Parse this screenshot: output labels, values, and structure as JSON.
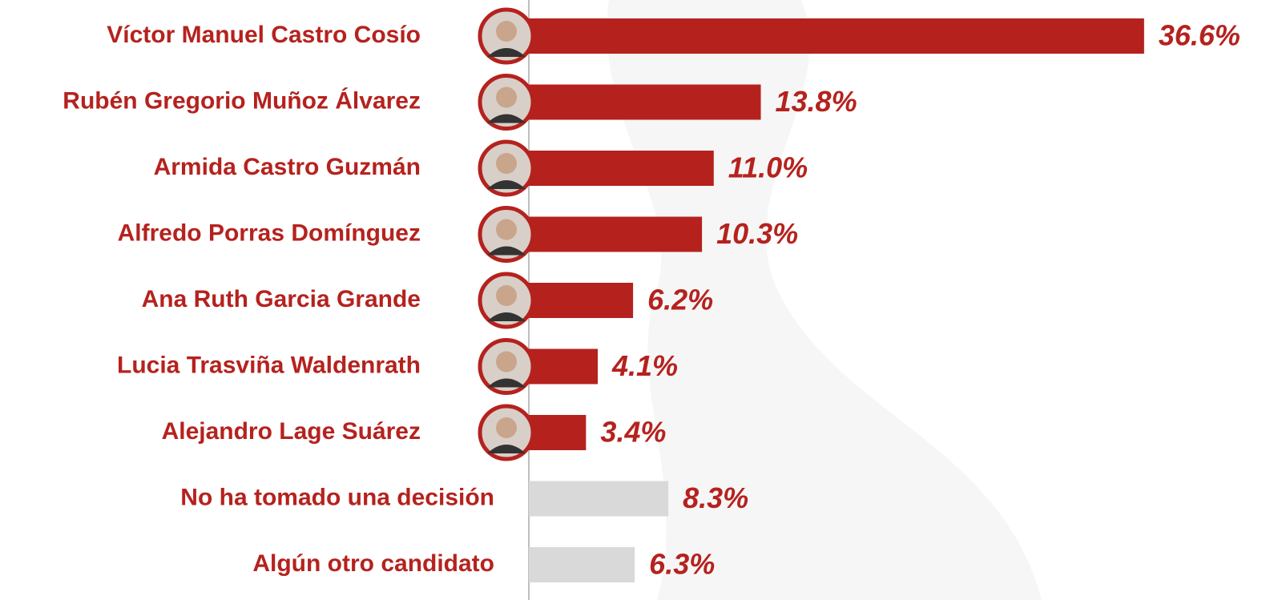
{
  "chart_data": {
    "type": "bar",
    "orientation": "horizontal",
    "categories": [
      "Víctor Manuel Castro Cosío",
      "Rubén Gregorio Muñoz Álvarez",
      "Armida Castro Guzmán",
      "Alfredo Porras Domínguez",
      "Ana Ruth Garcia Grande",
      "Lucia Trasviña Waldenrath",
      "Alejandro Lage Suárez",
      "No ha tomado una decisión",
      "Algún otro candidato"
    ],
    "values": [
      36.6,
      13.8,
      11.0,
      10.3,
      6.2,
      4.1,
      3.4,
      8.3,
      6.3
    ],
    "value_labels": [
      "36.6%",
      "13.8%",
      "11.0%",
      "10.3%",
      "6.2%",
      "4.1%",
      "3.4%",
      "8.3%",
      "6.3%"
    ],
    "colors": [
      "#b5221e",
      "#b5221e",
      "#b5221e",
      "#b5221e",
      "#b5221e",
      "#b5221e",
      "#b5221e",
      "#d9d9d9",
      "#d9d9d9"
    ]
  }
}
